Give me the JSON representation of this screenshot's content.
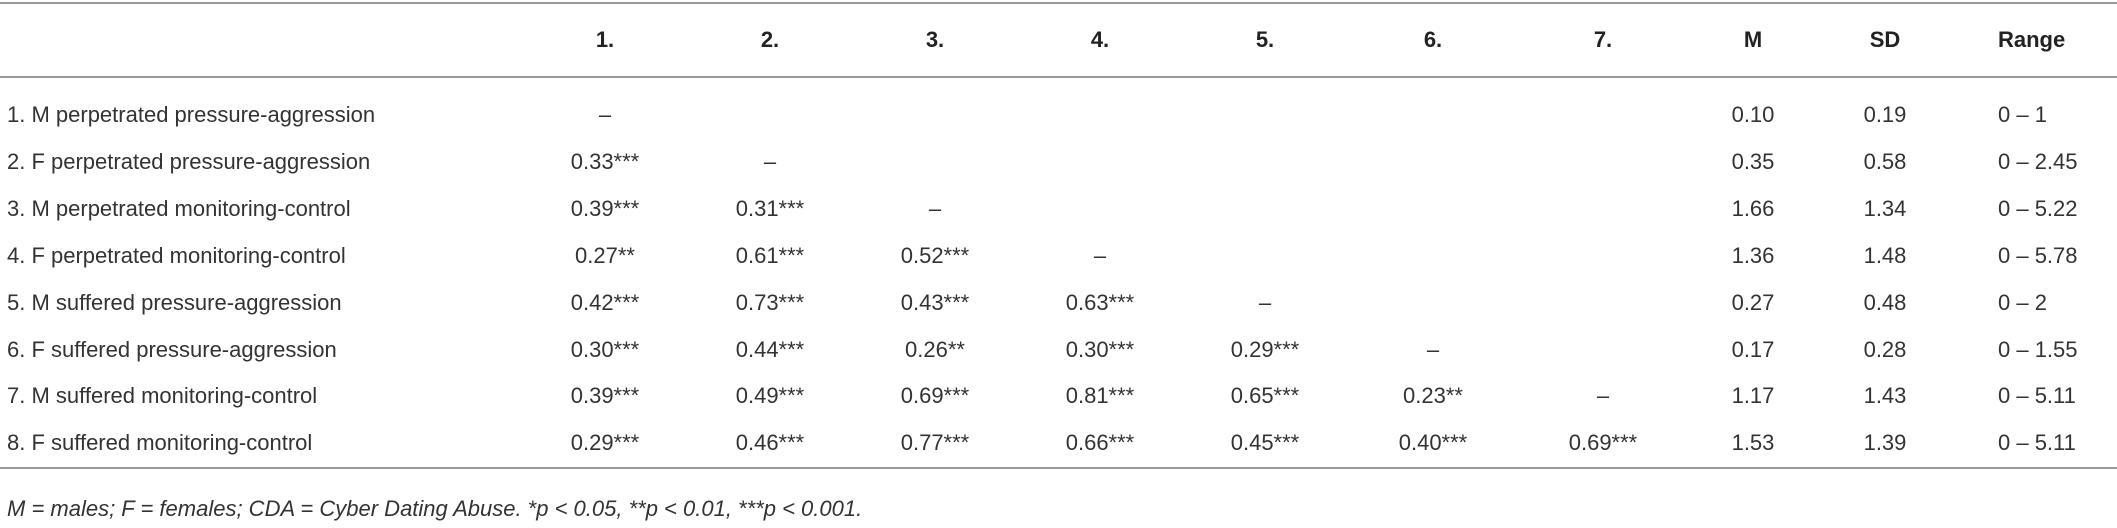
{
  "table": {
    "header": [
      "1.",
      "2.",
      "3.",
      "4.",
      "5.",
      "6.",
      "7.",
      "M",
      "SD",
      "Range"
    ],
    "rows": [
      [
        "1. M perpetrated pressure-aggression",
        "–",
        null,
        null,
        null,
        null,
        null,
        null,
        "0.10",
        "0.19",
        "0 – 1"
      ],
      [
        "2. F perpetrated pressure-aggression",
        "0.33***",
        "–",
        null,
        null,
        null,
        null,
        null,
        "0.35",
        "0.58",
        "0 – 2.45"
      ],
      [
        "3. M perpetrated monitoring-control",
        "0.39***",
        "0.31***",
        "–",
        null,
        null,
        null,
        null,
        "1.66",
        "1.34",
        "0 – 5.22"
      ],
      [
        "4. F perpetrated monitoring-control",
        "0.27**",
        "0.61***",
        "0.52***",
        "–",
        null,
        null,
        null,
        "1.36",
        "1.48",
        "0 – 5.78"
      ],
      [
        "5. M suffered pressure-aggression",
        "0.42***",
        "0.73***",
        "0.43***",
        "0.63***",
        "–",
        null,
        null,
        "0.27",
        "0.48",
        "0 – 2"
      ],
      [
        "6. F suffered pressure-aggression",
        "0.30***",
        "0.44***",
        "0.26**",
        "0.30***",
        "0.29***",
        "–",
        null,
        "0.17",
        "0.28",
        "0 – 1.55"
      ],
      [
        "7. M suffered monitoring-control",
        "0.39***",
        "0.49***",
        "0.69***",
        "0.81***",
        "0.65***",
        "0.23**",
        "–",
        "1.17",
        "1.43",
        "0 – 5.11"
      ],
      [
        "8. F suffered monitoring-control",
        "0.29***",
        "0.46***",
        "0.77***",
        "0.66***",
        "0.45***",
        "0.40***",
        "0.69***",
        "1.53",
        "1.39",
        "0 – 5.11"
      ]
    ]
  },
  "footnote": "M = males; F = females; CDA = Cyber Dating Abuse. *p < 0.05, **p < 0.01, ***p < 0.001."
}
